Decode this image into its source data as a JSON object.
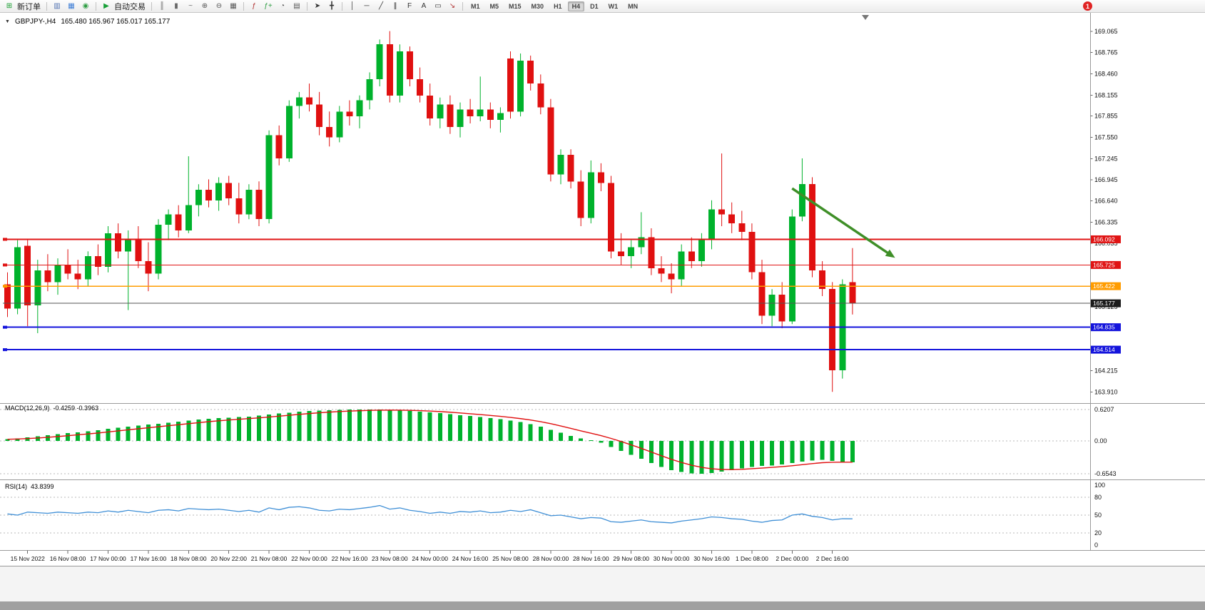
{
  "toolbar": {
    "new_order": "新订单",
    "auto_trading": "自动交易",
    "timeframes": [
      "M1",
      "M5",
      "M15",
      "M30",
      "H1",
      "H4",
      "D1",
      "W1",
      "MN"
    ],
    "active_timeframe": "H4",
    "notification_count": "1",
    "icons": [
      {
        "name": "new-order-button",
        "glyph": "⊞",
        "color": "#169c2e",
        "label": "新订单"
      },
      {
        "sep": true
      },
      {
        "name": "market-watch-icon",
        "glyph": "▥",
        "color": "#4d6fb0"
      },
      {
        "name": "data-window-icon",
        "glyph": "▦",
        "color": "#3a7bd5"
      },
      {
        "name": "navigator-icon",
        "glyph": "◉",
        "color": "#2f9e44"
      },
      {
        "sep": true
      },
      {
        "name": "auto-trading-button",
        "glyph": "▶",
        "color": "#18a038",
        "label": "自动交易"
      },
      {
        "sep": true
      },
      {
        "name": "bar-chart-type-icon",
        "glyph": "║",
        "color": "#666666"
      },
      {
        "name": "candlestick-type-icon",
        "glyph": "▮",
        "color": "#666666"
      },
      {
        "name": "line-chart-type-icon",
        "glyph": "~",
        "color": "#666666"
      },
      {
        "name": "zoom-in-icon",
        "glyph": "⊕",
        "color": "#555555"
      },
      {
        "name": "zoom-out-icon",
        "glyph": "⊖",
        "color": "#555555"
      },
      {
        "name": "tile-windows-icon",
        "glyph": "▦",
        "color": "#555555"
      },
      {
        "sep": true
      },
      {
        "name": "indicators-icon",
        "glyph": "ƒ",
        "color": "#b03030"
      },
      {
        "name": "add-indicator-icon",
        "glyph": "ƒ+",
        "color": "#2f9e44"
      },
      {
        "name": "period-icon",
        "glyph": "◔",
        "color": "#555555"
      },
      {
        "name": "templates-icon",
        "glyph": "▤",
        "color": "#555555"
      },
      {
        "sep": true
      },
      {
        "name": "cursor-icon",
        "glyph": "➤",
        "color": "#333333"
      },
      {
        "name": "crosshair-icon",
        "glyph": "╋",
        "color": "#333333"
      },
      {
        "sep": true
      },
      {
        "name": "vertical-line-icon",
        "glyph": "│",
        "color": "#333333"
      },
      {
        "name": "horizontal-line-icon",
        "glyph": "─",
        "color": "#333333"
      },
      {
        "name": "trendline-icon",
        "glyph": "╱",
        "color": "#333333"
      },
      {
        "name": "equidistant-channel-icon",
        "glyph": "∥",
        "color": "#333333"
      },
      {
        "name": "fibonacci-icon",
        "glyph": "F",
        "color": "#333333"
      },
      {
        "name": "text-icon",
        "glyph": "A",
        "color": "#333333"
      },
      {
        "name": "text-label-icon",
        "glyph": "▭",
        "color": "#333333"
      },
      {
        "name": "arrows-icon",
        "glyph": "↘",
        "color": "#b03030"
      },
      {
        "sep": true
      }
    ]
  },
  "chart": {
    "dropdown_glyph": "▼",
    "symbol_period": "GBPJPY-,H4",
    "ohlc_text": "165.480 165.967 165.017 165.177",
    "up_color": "#00b22c",
    "down_color": "#e01010",
    "price_axis": [
      "169.065",
      "168.765",
      "168.460",
      "168.155",
      "167.855",
      "167.550",
      "167.245",
      "166.945",
      "166.640",
      "166.335",
      "166.035",
      "165.730",
      "165.425",
      "165.125",
      "164.820",
      "164.515",
      "164.215",
      "163.910"
    ],
    "time_axis": [
      "15 Nov 2022",
      "16 Nov 08:00",
      "17 Nov 00:00",
      "17 Nov 16:00",
      "18 Nov 08:00",
      "20 Nov 22:00",
      "21 Nov 08:00",
      "22 Nov 00:00",
      "22 Nov 16:00",
      "23 Nov 08:00",
      "24 Nov 00:00",
      "24 Nov 16:00",
      "25 Nov 08:00",
      "28 Nov 00:00",
      "28 Nov 16:00",
      "29 Nov 08:00",
      "30 Nov 00:00",
      "30 Nov 16:00",
      "1 Dec 08:00",
      "2 Dec 00:00",
      "2 Dec 16:00"
    ],
    "levels": [
      {
        "label": "166.092",
        "value": 166.092,
        "color": "#e01414",
        "width": 1.6
      },
      {
        "label": "165.725",
        "value": 165.725,
        "color": "#e01414",
        "width": 1.2
      },
      {
        "label": "165.422",
        "value": 165.422,
        "color": "#ff9c00",
        "width": 1.6
      },
      {
        "label": "164.835",
        "value": 164.835,
        "color": "#1414dc",
        "width": 1.8
      },
      {
        "label": "164.514",
        "value": 164.514,
        "color": "#1414dc",
        "width": 1.8
      }
    ],
    "current_price": {
      "label": "165.177",
      "value": 165.177,
      "badge_color": "#1a1a1a",
      "line_color": "#555555"
    }
  },
  "indicators": {
    "macd": {
      "label": "MACD(12,26,9)",
      "values_text": "-0.4259 -0.3963",
      "axis": [
        "0.6207",
        "0.00",
        "-0.6543"
      ],
      "range": [
        -0.6543,
        0.6207
      ],
      "hist_color": "#00b22c",
      "signal_color": "#e01010"
    },
    "rsi": {
      "label": "RSI(14)",
      "value_text": "43.8399",
      "axis": [
        "100",
        "80",
        "50",
        "20",
        "0"
      ],
      "level_lines": [
        80,
        50,
        20
      ],
      "line_color": "#3f8fd6"
    }
  },
  "chart_data": {
    "type": "candlestick",
    "symbol": "GBPJPY",
    "timeframe": "H4",
    "price_range": [
      163.76,
      169.27
    ],
    "candles": [
      [
        165.45,
        165.62,
        164.98,
        165.1
      ],
      [
        165.1,
        166.08,
        165.02,
        165.98
      ],
      [
        166.0,
        166.1,
        164.85,
        165.15
      ],
      [
        165.15,
        165.8,
        164.75,
        165.65
      ],
      [
        165.65,
        165.88,
        165.35,
        165.48
      ],
      [
        165.48,
        165.82,
        165.3,
        165.72
      ],
      [
        165.72,
        165.95,
        165.52,
        165.6
      ],
      [
        165.6,
        165.8,
        165.38,
        165.52
      ],
      [
        165.52,
        165.92,
        165.42,
        165.85
      ],
      [
        165.85,
        166.02,
        165.58,
        165.7
      ],
      [
        165.7,
        166.28,
        165.62,
        166.18
      ],
      [
        166.18,
        166.32,
        165.82,
        165.92
      ],
      [
        165.92,
        166.22,
        165.08,
        166.1
      ],
      [
        166.1,
        166.28,
        165.68,
        165.78
      ],
      [
        165.78,
        166.05,
        165.35,
        165.6
      ],
      [
        165.6,
        166.38,
        165.52,
        166.3
      ],
      [
        166.3,
        166.52,
        166.08,
        166.45
      ],
      [
        166.45,
        166.58,
        166.12,
        166.22
      ],
      [
        166.22,
        167.28,
        166.18,
        166.58
      ],
      [
        166.58,
        166.88,
        166.42,
        166.8
      ],
      [
        166.8,
        166.95,
        166.55,
        166.65
      ],
      [
        166.65,
        166.98,
        166.5,
        166.9
      ],
      [
        166.9,
        167.0,
        166.58,
        166.68
      ],
      [
        166.68,
        166.9,
        166.32,
        166.45
      ],
      [
        166.45,
        166.88,
        166.38,
        166.8
      ],
      [
        166.8,
        166.92,
        166.28,
        166.38
      ],
      [
        166.38,
        167.65,
        166.32,
        167.58
      ],
      [
        167.58,
        167.72,
        167.15,
        167.25
      ],
      [
        167.25,
        168.08,
        167.2,
        168.0
      ],
      [
        168.0,
        168.2,
        167.82,
        168.12
      ],
      [
        168.12,
        168.32,
        167.92,
        168.02
      ],
      [
        168.02,
        168.2,
        167.58,
        167.7
      ],
      [
        167.7,
        167.92,
        167.42,
        167.55
      ],
      [
        167.55,
        168.0,
        167.48,
        167.92
      ],
      [
        167.92,
        168.08,
        167.72,
        167.85
      ],
      [
        167.85,
        168.15,
        167.68,
        168.08
      ],
      [
        168.08,
        168.48,
        167.95,
        168.38
      ],
      [
        168.38,
        168.95,
        168.28,
        168.88
      ],
      [
        168.88,
        169.07,
        168.05,
        168.15
      ],
      [
        168.15,
        168.88,
        168.05,
        168.78
      ],
      [
        168.78,
        168.85,
        168.28,
        168.38
      ],
      [
        168.38,
        168.55,
        168.05,
        168.15
      ],
      [
        168.15,
        168.32,
        167.72,
        167.82
      ],
      [
        167.82,
        168.12,
        167.68,
        168.02
      ],
      [
        168.02,
        168.15,
        167.6,
        167.7
      ],
      [
        167.7,
        168.05,
        167.55,
        167.95
      ],
      [
        167.95,
        168.1,
        167.75,
        167.85
      ],
      [
        167.85,
        168.42,
        167.78,
        167.95
      ],
      [
        167.95,
        168.05,
        167.68,
        167.8
      ],
      [
        167.8,
        167.98,
        167.62,
        167.9
      ],
      [
        168.68,
        168.78,
        167.82,
        167.92
      ],
      [
        167.92,
        168.75,
        167.85,
        168.65
      ],
      [
        168.65,
        168.72,
        168.22,
        168.32
      ],
      [
        168.32,
        168.45,
        167.88,
        167.98
      ],
      [
        167.98,
        168.1,
        166.92,
        167.02
      ],
      [
        167.02,
        167.38,
        166.88,
        167.3
      ],
      [
        167.3,
        167.38,
        166.82,
        166.92
      ],
      [
        166.92,
        167.08,
        166.28,
        166.4
      ],
      [
        166.4,
        167.22,
        166.32,
        167.05
      ],
      [
        167.05,
        167.18,
        166.78,
        166.9
      ],
      [
        166.9,
        167.0,
        165.82,
        165.92
      ],
      [
        165.92,
        166.18,
        165.72,
        165.85
      ],
      [
        165.85,
        166.08,
        165.68,
        165.98
      ],
      [
        165.98,
        166.48,
        165.88,
        166.12
      ],
      [
        166.12,
        166.25,
        165.58,
        165.68
      ],
      [
        165.68,
        165.85,
        165.48,
        165.6
      ],
      [
        165.6,
        165.75,
        165.32,
        165.52
      ],
      [
        165.52,
        166.02,
        165.42,
        165.92
      ],
      [
        165.92,
        166.12,
        165.68,
        165.78
      ],
      [
        165.78,
        166.18,
        165.7,
        166.08
      ],
      [
        166.08,
        166.65,
        165.95,
        166.52
      ],
      [
        166.52,
        167.32,
        166.28,
        166.45
      ],
      [
        166.45,
        166.62,
        166.18,
        166.32
      ],
      [
        166.32,
        166.5,
        166.08,
        166.2
      ],
      [
        166.2,
        166.32,
        165.52,
        165.62
      ],
      [
        165.62,
        165.8,
        164.88,
        165.0
      ],
      [
        165.0,
        165.38,
        164.85,
        165.3
      ],
      [
        165.3,
        165.48,
        164.82,
        164.92
      ],
      [
        164.92,
        166.52,
        164.88,
        166.42
      ],
      [
        166.42,
        167.25,
        166.35,
        166.88
      ],
      [
        166.88,
        166.98,
        165.55,
        165.65
      ],
      [
        165.65,
        165.78,
        165.28,
        165.38
      ],
      [
        165.38,
        165.48,
        163.91,
        164.22
      ],
      [
        164.22,
        165.52,
        164.1,
        165.45
      ],
      [
        165.48,
        165.967,
        165.017,
        165.177
      ]
    ],
    "macd": [
      0.03,
      0.05,
      0.07,
      0.09,
      0.11,
      0.13,
      0.15,
      0.17,
      0.19,
      0.21,
      0.24,
      0.26,
      0.28,
      0.3,
      0.32,
      0.34,
      0.36,
      0.38,
      0.4,
      0.42,
      0.44,
      0.45,
      0.46,
      0.47,
      0.48,
      0.5,
      0.52,
      0.54,
      0.56,
      0.58,
      0.59,
      0.6,
      0.61,
      0.615,
      0.618,
      0.62,
      0.6207,
      0.618,
      0.612,
      0.605,
      0.595,
      0.58,
      0.565,
      0.55,
      0.53,
      0.51,
      0.49,
      0.47,
      0.45,
      0.43,
      0.4,
      0.37,
      0.33,
      0.28,
      0.22,
      0.16,
      0.1,
      0.05,
      0.01,
      -0.04,
      -0.12,
      -0.2,
      -0.28,
      -0.36,
      -0.44,
      -0.52,
      -0.58,
      -0.62,
      -0.65,
      -0.6543,
      -0.64,
      -0.61,
      -0.58,
      -0.55,
      -0.52,
      -0.5,
      -0.49,
      -0.47,
      -0.44,
      -0.41,
      -0.39,
      -0.38,
      -0.4,
      -0.42,
      -0.4259
    ],
    "rsi": [
      52,
      50,
      55,
      54,
      53,
      55,
      54,
      53,
      55,
      54,
      57,
      55,
      58,
      56,
      54,
      58,
      59,
      57,
      61,
      60,
      59,
      60,
      58,
      56,
      58,
      55,
      62,
      59,
      63,
      64,
      62,
      58,
      57,
      60,
      59,
      61,
      63,
      66,
      60,
      62,
      58,
      56,
      53,
      55,
      53,
      56,
      55,
      57,
      54,
      55,
      58,
      56,
      59,
      54,
      49,
      50,
      47,
      44,
      46,
      45,
      39,
      38,
      40,
      42,
      39,
      38,
      37,
      40,
      42,
      44,
      47,
      46,
      44,
      43,
      40,
      38,
      41,
      42,
      50,
      52,
      48,
      46,
      42,
      44,
      43.84
    ],
    "trend_arrow": {
      "from": {
        "index": 78,
        "price": 166.82
      },
      "to": {
        "index": 88,
        "price": 165.85
      },
      "color": "#3f8f28"
    }
  }
}
